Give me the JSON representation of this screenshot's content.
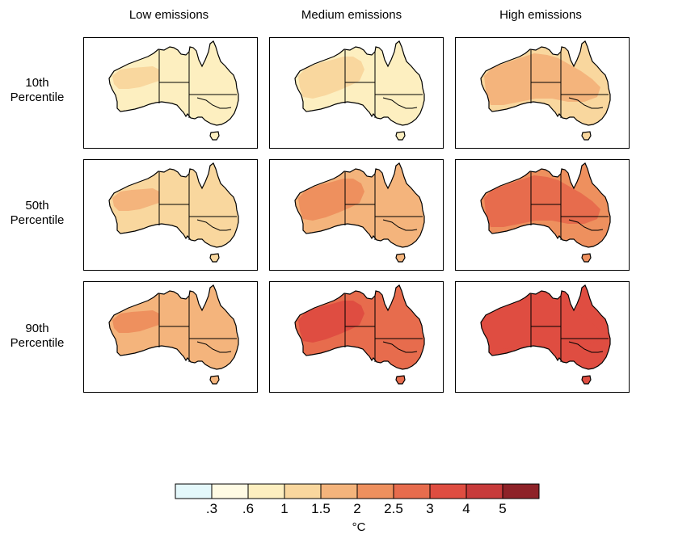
{
  "columns": [
    "Low emissions",
    "Medium emissions",
    "High emissions"
  ],
  "rows": [
    {
      "label_line1": "10th",
      "label_line2": "Percentile"
    },
    {
      "label_line1": "50th",
      "label_line2": "Percentile"
    },
    {
      "label_line1": "90th",
      "label_line2": "Percentile"
    }
  ],
  "colorbar": {
    "colors": [
      "#e4f8fb",
      "#fffbe4",
      "#fdefc0",
      "#f9d79e",
      "#f4b47c",
      "#ee905e",
      "#e76c4d",
      "#df4d41",
      "#c73a3a",
      "#8e2228"
    ],
    "tick_labels": [
      ".3",
      ".6",
      "1",
      "1.5",
      "2",
      "2.5",
      "3",
      "4",
      "5"
    ],
    "unit": "°C"
  },
  "panels": [
    [
      {
        "base_class": 2,
        "hot_class": 3
      },
      {
        "base_class": 2,
        "hot_class": 3
      },
      {
        "base_class": 3,
        "hot_class": 4
      }
    ],
    [
      {
        "base_class": 3,
        "hot_class": 4
      },
      {
        "base_class": 4,
        "hot_class": 5
      },
      {
        "base_class": 5,
        "hot_class": 6
      }
    ],
    [
      {
        "base_class": 4,
        "hot_class": 5
      },
      {
        "base_class": 6,
        "hot_class": 7
      },
      {
        "base_class": 7,
        "hot_class": 7
      }
    ]
  ]
}
